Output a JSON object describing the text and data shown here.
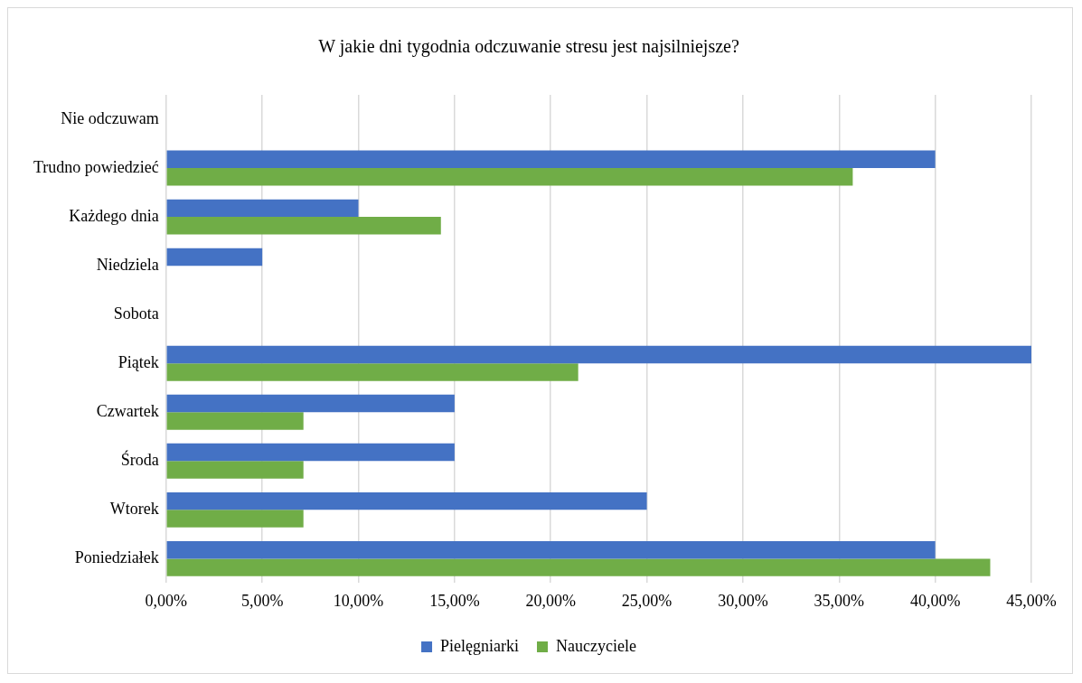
{
  "chart_data": {
    "type": "bar",
    "orientation": "horizontal",
    "title": "W jakie dni tygodnia odczuwanie stresu jest najsilniejsze?",
    "categories": [
      "Nie odczuwam",
      "Trudno powiedzieć",
      "Każdego dnia",
      "Niedziela",
      "Sobota",
      "Piątek",
      "Czwartek",
      "Środa",
      "Wtorek",
      "Poniedziałek"
    ],
    "series": [
      {
        "name": "Pielęgniarki",
        "color": "#4472c4",
        "values": [
          0,
          40,
          10,
          5,
          0,
          45,
          15,
          15,
          25,
          40
        ]
      },
      {
        "name": "Nauczyciele",
        "color": "#70ad47",
        "values": [
          0,
          35.71,
          14.29,
          0,
          0,
          21.43,
          7.14,
          7.14,
          7.14,
          42.86
        ]
      }
    ],
    "xlim": [
      0,
      45
    ],
    "xticks": [
      {
        "value": 0,
        "label": "0,00%"
      },
      {
        "value": 5,
        "label": "5,00%"
      },
      {
        "value": 10,
        "label": "10,00%"
      },
      {
        "value": 15,
        "label": "15,00%"
      },
      {
        "value": 20,
        "label": "20,00%"
      },
      {
        "value": 25,
        "label": "25,00%"
      },
      {
        "value": 30,
        "label": "30,00%"
      },
      {
        "value": 35,
        "label": "35,00%"
      },
      {
        "value": 40,
        "label": "40,00%"
      },
      {
        "value": 45,
        "label": "45,00%"
      }
    ],
    "grid": "x",
    "legend": "bottom"
  }
}
